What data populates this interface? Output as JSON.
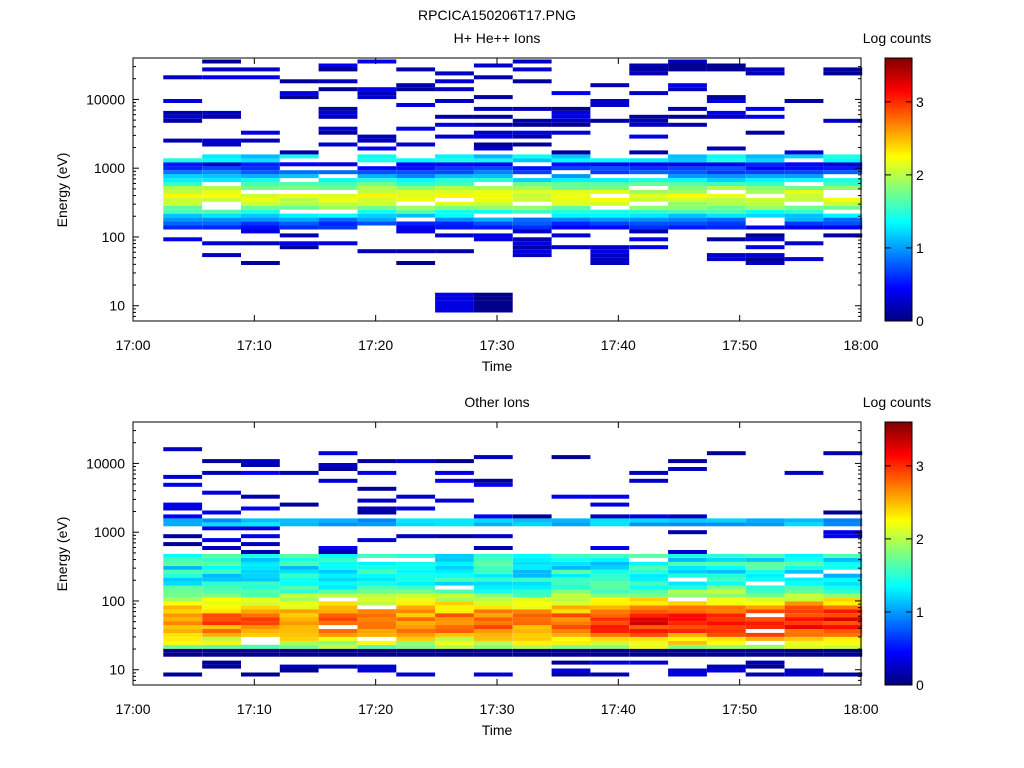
{
  "figure_title": "RPCICA150206T17.PNG",
  "colors": {
    "colormap": [
      "#00007f",
      "#0000ff",
      "#007fff",
      "#00ffff",
      "#7fff7f",
      "#ffff00",
      "#ff7f00",
      "#ff0000",
      "#7f0000"
    ],
    "axes": "#000000",
    "background": "#ffffff"
  },
  "chart_data": [
    {
      "type": "heatmap",
      "title": "H+ He++ Ions",
      "xlabel": "Time",
      "ylabel": "Energy (eV)",
      "x_ticks": [
        "17:00",
        "17:10",
        "17:20",
        "17:30",
        "17:40",
        "17:50",
        "18:00"
      ],
      "y_ticks": [
        "10",
        "100",
        "1000",
        "10000"
      ],
      "y_scale": "log",
      "ylim": [
        6,
        40000
      ],
      "xlim_minutes": [
        0,
        60
      ],
      "grid": false,
      "colorbar": {
        "label": "Log counts",
        "range": [
          0,
          3.6
        ],
        "ticks": [
          "0",
          "1",
          "2",
          "3"
        ]
      },
      "time_bins_start_minutes": [
        2.5,
        5.7,
        8.9,
        12.1,
        15.3,
        18.5,
        21.7,
        24.9,
        28.1,
        31.3,
        34.5,
        37.7,
        40.9,
        44.1,
        47.3,
        50.5,
        53.7,
        56.9
      ],
      "bin_width_minutes": 3.2,
      "summary": "Dense band between roughly 150 eV and 1600 eV peaking near 300-500 eV at log counts ~2; scattered single-count bins (log counts ~0) from 30 eV up to 35000 eV; isolated low-energy bins near 8-15 eV around 17:25-17:30."
    },
    {
      "type": "heatmap",
      "title": "Other Ions",
      "xlabel": "Time",
      "ylabel": "Energy (eV)",
      "x_ticks": [
        "17:00",
        "17:10",
        "17:20",
        "17:30",
        "17:40",
        "17:50",
        "18:00"
      ],
      "y_ticks": [
        "10",
        "100",
        "1000",
        "10000"
      ],
      "y_scale": "log",
      "ylim": [
        6,
        40000
      ],
      "xlim_minutes": [
        0,
        60
      ],
      "grid": false,
      "colorbar": {
        "label": "Log counts",
        "range": [
          0,
          3.6
        ],
        "ticks": [
          "0",
          "1",
          "2",
          "3"
        ]
      },
      "time_bins_start_minutes": [
        2.5,
        5.7,
        8.9,
        12.1,
        15.3,
        18.5,
        21.7,
        24.9,
        28.1,
        31.3,
        34.5,
        37.7,
        40.9,
        44.1,
        47.3,
        50.5,
        53.7,
        56.9
      ],
      "bin_width_minutes": 3.2,
      "summary": "Broad band from about 20 eV to 450 eV with peak log counts ~2.5-3 near 40-80 eV after 17:35; thin band near 1300-1600 eV at log counts ~1; sparse bins up to ~17000 eV; low-energy bins near 8-12 eV."
    }
  ]
}
